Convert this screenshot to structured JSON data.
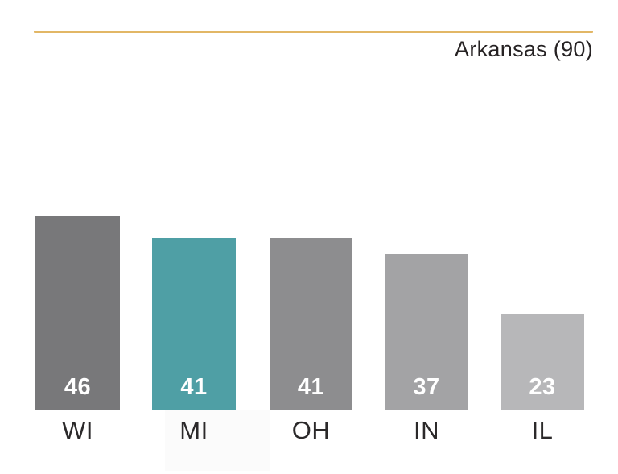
{
  "chart_data": {
    "type": "bar",
    "title": "Arkansas (90)",
    "categories": [
      "WI",
      "MI",
      "OH",
      "IN",
      "IL"
    ],
    "values": [
      46,
      41,
      41,
      37,
      23
    ],
    "bar_colors": [
      "#78787a",
      "#4f9fa5",
      "#8d8d8f",
      "#a3a3a5",
      "#b7b7b9"
    ],
    "highlighted_category": "MI",
    "value_labels_inside": true,
    "xlabel": "",
    "ylabel": "",
    "ylim": [
      0,
      46
    ],
    "grid": false,
    "legend": "none"
  },
  "colors": {
    "rule": "#e2b766",
    "title_text": "#262223",
    "category_text": "#2b292a",
    "value_text": "#ffffff",
    "highlight_band": "#fbfbfb"
  }
}
